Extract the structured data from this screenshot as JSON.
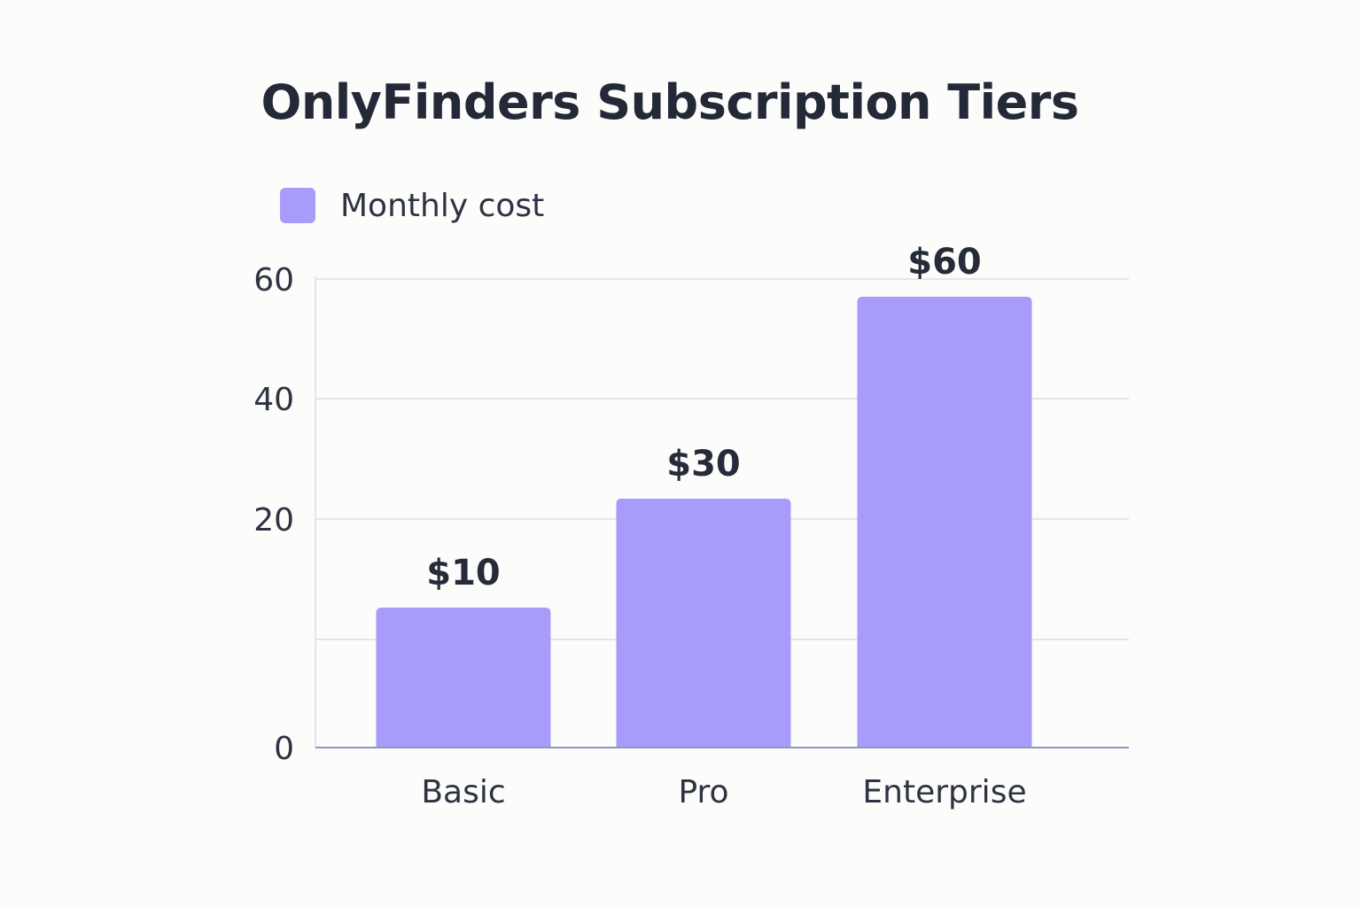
{
  "chart_data": {
    "type": "bar",
    "title": "OnlyFinders Subscription Tiers",
    "xlabel": "",
    "ylabel": "",
    "categories": [
      "Basic",
      "Pro",
      "Enterprise"
    ],
    "series": [
      {
        "name": "Monthly cost",
        "values": [
          10,
          30,
          60
        ],
        "data_labels": [
          "$10",
          "$30",
          "$60"
        ],
        "color": "#a89cfa"
      }
    ],
    "ylim": [
      0,
      60
    ],
    "y_tick_labels": [
      "0",
      "",
      "20",
      "40",
      "60"
    ],
    "grid": true,
    "legend_position": "top-left"
  }
}
